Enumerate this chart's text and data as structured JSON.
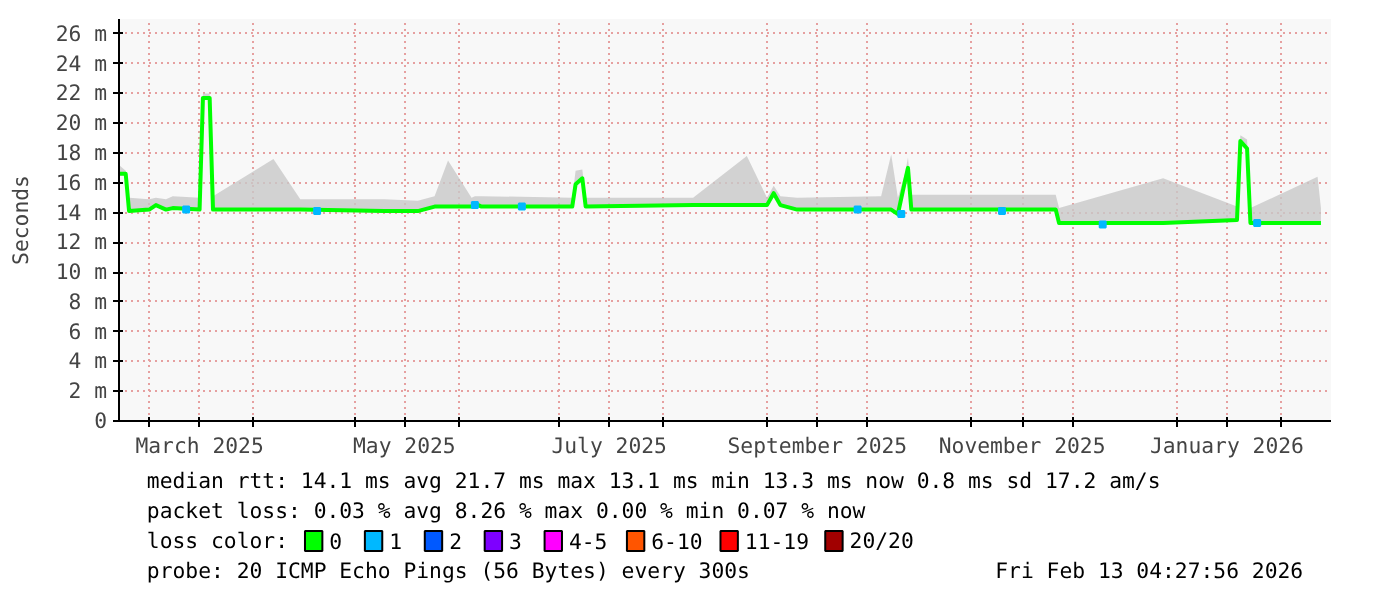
{
  "chart_data": {
    "type": "line",
    "ylabel": "Seconds",
    "legend_title": "loss color:",
    "legend": "bottom",
    "grid": true,
    "line_style": "solid",
    "xlim": [
      "2025-02-20",
      "2026-02-16"
    ],
    "xticks": [
      {
        "value": "2025-03-01",
        "label": null
      },
      {
        "value": "2025-03-16",
        "label": "March 2025"
      },
      {
        "value": "2025-04-01",
        "label": null
      },
      {
        "value": "2025-05-01",
        "label": null
      },
      {
        "value": "2025-05-16",
        "label": "May 2025"
      },
      {
        "value": "2025-06-01",
        "label": null
      },
      {
        "value": "2025-07-01",
        "label": null
      },
      {
        "value": "2025-07-16",
        "label": "July 2025"
      },
      {
        "value": "2025-08-01",
        "label": null
      },
      {
        "value": "2025-09-01",
        "label": null
      },
      {
        "value": "2025-09-16",
        "label": "September 2025"
      },
      {
        "value": "2025-10-01",
        "label": null
      },
      {
        "value": "2025-11-01",
        "label": null
      },
      {
        "value": "2025-11-16",
        "label": "November 2025"
      },
      {
        "value": "2025-12-01",
        "label": null
      },
      {
        "value": "2026-01-01",
        "label": null
      },
      {
        "value": "2026-01-16",
        "label": "January 2026"
      },
      {
        "value": "2026-02-01",
        "label": null
      }
    ],
    "ylim": [
      0,
      27
    ],
    "yticks": [
      0,
      {
        "value": 2,
        "label": "2 m"
      },
      {
        "value": 4,
        "label": "4 m"
      },
      {
        "value": 6,
        "label": "6 m"
      },
      {
        "value": 8,
        "label": "8 m"
      },
      {
        "value": 10,
        "label": "10 m"
      },
      {
        "value": 12,
        "label": "12 m"
      },
      {
        "value": 14,
        "label": "14 m"
      },
      {
        "value": 16,
        "label": "16 m"
      },
      {
        "value": 18,
        "label": "18 m"
      },
      {
        "value": 20,
        "label": "20 m"
      },
      {
        "value": 22,
        "label": "22 m"
      },
      {
        "value": 24,
        "label": "24 m"
      },
      {
        "value": 26,
        "label": "26 m"
      }
    ],
    "series": [
      {
        "name": "0",
        "color": "#00ff00",
        "x": [
          "2025-02-20",
          "2025-02-22",
          "2025-02-23",
          "2025-03-01",
          "2025-03-03",
          "2025-03-06",
          "2025-03-08",
          "2025-03-16",
          "2025-03-17",
          "2025-03-19",
          "2025-03-20",
          "2025-04-07",
          "2025-04-15",
          "2025-05-10",
          "2025-05-20",
          "2025-05-25",
          "2025-05-29",
          "2025-06-05",
          "2025-06-06",
          "2025-06-08",
          "2025-07-05",
          "2025-07-06",
          "2025-07-08",
          "2025-07-09",
          "2025-08-10",
          "2025-08-26",
          "2025-09-01",
          "2025-09-03",
          "2025-09-05",
          "2025-09-10",
          "2025-10-05",
          "2025-10-08",
          "2025-10-10",
          "2025-10-12",
          "2025-10-13",
          "2025-10-14",
          "2025-11-26",
          "2025-11-27",
          "2025-12-28",
          "2026-01-19",
          "2026-01-20",
          "2026-01-22",
          "2026-01-23",
          "2026-02-12",
          "2026-02-13"
        ],
        "values": [
          16.6,
          16.6,
          14.1,
          14.2,
          14.5,
          14.2,
          14.3,
          14.2,
          21.7,
          21.7,
          14.2,
          14.2,
          14.2,
          14.1,
          14.1,
          14.4,
          14.4,
          14.4,
          14.6,
          14.4,
          14.4,
          15.9,
          16.3,
          14.4,
          14.5,
          14.5,
          14.5,
          15.3,
          14.5,
          14.2,
          14.2,
          14.2,
          13.9,
          16.0,
          17.0,
          14.2,
          14.2,
          13.3,
          13.3,
          13.5,
          18.8,
          18.3,
          13.3,
          13.3,
          13.3
        ],
        "lower": [
          16.5,
          16.5,
          14.0,
          14.1,
          14.4,
          14.1,
          14.2,
          14.1,
          21.6,
          21.6,
          14.1,
          14.1,
          14.1,
          14.0,
          14.0,
          14.3,
          14.3,
          14.3,
          14.5,
          14.3,
          14.3,
          15.8,
          16.2,
          14.3,
          14.4,
          14.4,
          14.4,
          15.2,
          14.4,
          14.1,
          14.1,
          14.1,
          13.8,
          15.9,
          16.9,
          14.1,
          14.1,
          13.2,
          13.2,
          13.4,
          18.7,
          18.2,
          13.2,
          13.2,
          13.2
        ],
        "upper": [
          17.2,
          16.8,
          15.0,
          14.9,
          15.0,
          14.9,
          15.1,
          15.0,
          22.0,
          22.0,
          15.1,
          17.6,
          14.9,
          14.9,
          14.8,
          15.1,
          17.5,
          15.0,
          15.1,
          15.1,
          15.0,
          16.8,
          16.9,
          15.0,
          15.0,
          17.8,
          15.0,
          15.8,
          15.1,
          15.0,
          15.1,
          17.9,
          15.0,
          16.5,
          17.7,
          15.2,
          15.2,
          14.3,
          16.3,
          14.4,
          19.2,
          18.9,
          14.3,
          16.4,
          14.3
        ]
      },
      {
        "name": "1",
        "color": "#00b8ff",
        "type": "scatter",
        "marker": "square",
        "x": [
          "2025-03-12",
          "2025-04-20",
          "2025-06-06",
          "2025-06-20",
          "2025-09-28",
          "2025-10-11",
          "2025-11-10",
          "2025-12-10",
          "2026-01-25"
        ],
        "values": [
          14.2,
          14.1,
          14.5,
          14.4,
          14.2,
          13.9,
          14.1,
          13.2,
          13.3
        ]
      },
      {
        "name": "2",
        "color": "#0059ff",
        "type": "scatter",
        "marker": "square"
      },
      {
        "name": "3",
        "color": "#7e00ff",
        "type": "scatter",
        "marker": "square"
      },
      {
        "name": "4-5",
        "color": "#ff00ff",
        "type": "scatter",
        "marker": "square"
      },
      {
        "name": "6-10",
        "color": "#ff5500",
        "type": "scatter",
        "marker": "square"
      },
      {
        "name": "11-19",
        "color": "#ff0000",
        "type": "scatter",
        "marker": "square"
      },
      {
        "name": "20/20",
        "color": "#a10000",
        "type": "scatter",
        "marker": "square"
      }
    ],
    "annotations": [
      "median rtt: 14.1 ms avg 21.7 ms max 13.1 ms min 13.3 ms now 0.8 ms sd 17.2 am/s",
      "packet loss: 0.03 % avg 8.26 % max 0.00 % min 0.07 % now",
      "probe: 20 ICMP Echo Pings (56 Bytes) every 300s",
      "Fri Feb 13 04:27:56 2026"
    ]
  }
}
